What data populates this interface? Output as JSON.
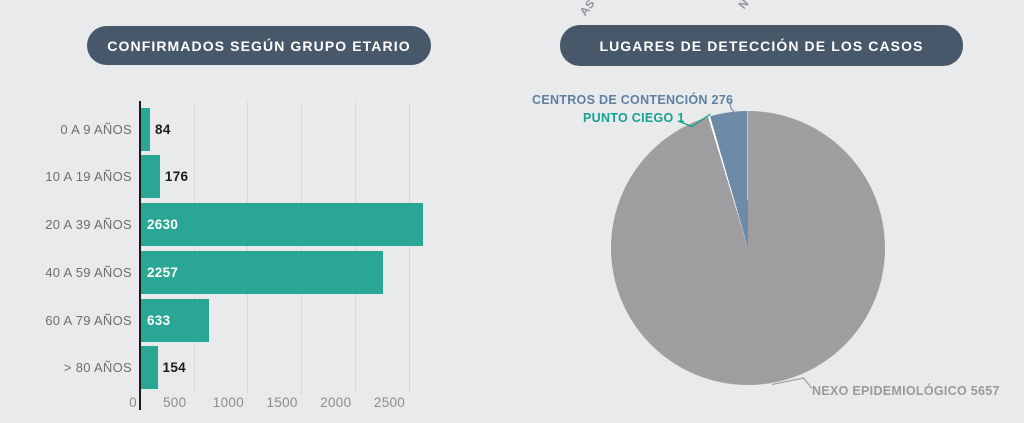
{
  "background": "#e9eaec",
  "header_fragments": {
    "left": "AS",
    "right": "N"
  },
  "colors": {
    "title_pill_bg": "#46586a",
    "title_pill_text": "#ffffff",
    "bar_color": "#29a794",
    "axis_line": "#1a1a1a",
    "gridline": "#d6d7d9",
    "category_label": "#6e6e6e",
    "tick_label": "#8c8c8c",
    "pie_gray": "#9e9ea0",
    "pie_blue": "#6d8ba7",
    "pie_teal": "#16a28d"
  },
  "chart_data": [
    {
      "type": "bar",
      "orientation": "horizontal",
      "title": "CONFIRMADOS SEGÚN GRUPO ETARIO",
      "categories": [
        "0 A 9 AÑOS",
        "10 A 19 AÑOS",
        "20 A 39 AÑOS",
        "40 A 59 AÑOS",
        "60 A 79 AÑOS",
        "> 80 AÑOS"
      ],
      "values": [
        84,
        176,
        2630,
        2257,
        633,
        154
      ],
      "x_ticks": [
        0,
        500,
        1000,
        1500,
        2000,
        2500
      ],
      "xlim": [
        0,
        2850
      ],
      "grid": true,
      "legend": "none",
      "bar_color": "#29a794",
      "value_label_inside_color": "#ffffff",
      "value_label_outside_color": "#1c1c1c"
    },
    {
      "type": "pie",
      "title": "LUGARES DE DETECCIÓN DE LOS CASOS",
      "start_angle_deg": 0,
      "direction": "clockwise",
      "slices": [
        {
          "label": "NEXO EPIDEMIOLÓGICO",
          "value": 5657,
          "display": "NEXO EPIDEMIOLÓGICO 5657",
          "color": "#9e9ea0",
          "label_color": "#9a9a9a"
        },
        {
          "label": "PUNTO CIEGO",
          "value": 1,
          "display": "PUNTO CIEGO 1",
          "color": "#16a28d",
          "label_color": "#16a28d"
        },
        {
          "label": "CENTROS DE CONTENCIÓN",
          "value": 276,
          "display": "CENTROS DE CONTENCIÓN 276",
          "color": "#6d8ba7",
          "label_color": "#5e81a1"
        }
      ]
    }
  ]
}
